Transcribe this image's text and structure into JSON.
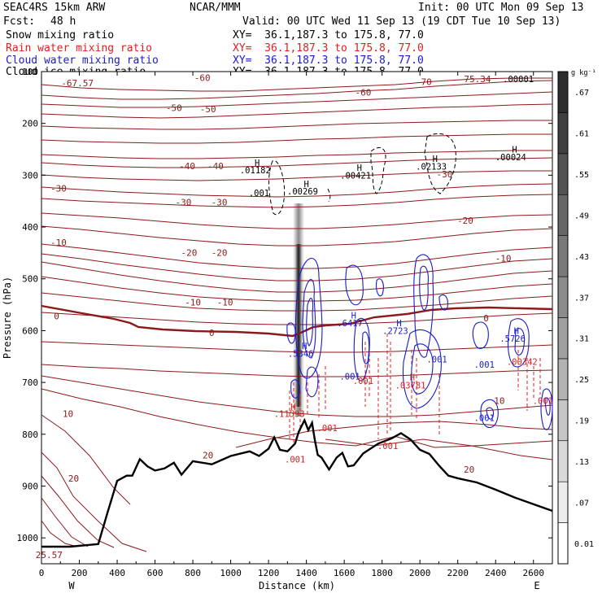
{
  "header": {
    "model": "SEAC4RS 15km ARW",
    "center": "NCAR/MMM",
    "init": "Init: 00 UTC Mon 09 Sep 13",
    "fcst_label": "Fcst:",
    "fcst_value": "48 h",
    "valid": "Valid: 00 UTC Wed 11 Sep 13 (19 CDT Tue 10 Sep 13)",
    "fields": [
      {
        "name": "Snow mixing ratio",
        "xy": "XY=  36.1,187.3 to 175.8, 77.0",
        "color": "#000000"
      },
      {
        "name": "Rain water mixing ratio",
        "xy": "XY=  36.1,187.3 to 175.8, 77.0",
        "color": "#dd2020"
      },
      {
        "name": "Cloud water mixing ratio",
        "xy": "XY=  36.1,187.3 to 175.8, 77.0",
        "color": "#1a1ad0"
      },
      {
        "name": "Cloud ice mixing ratio",
        "xy": "XY=  36.1,187.3 to 175.8, 77.0",
        "color": "#000000"
      }
    ]
  },
  "chart_data": {
    "type": "cross-section",
    "xlabel": "Distance (km)",
    "ylabel": "Pressure (hPa)",
    "xlim": [
      0,
      2700
    ],
    "ylim": [
      1050,
      100
    ],
    "x_ticks": [
      0,
      200,
      400,
      600,
      800,
      1000,
      1200,
      1400,
      1600,
      1800,
      2000,
      2200,
      2400,
      2600
    ],
    "y_ticks": [
      100,
      200,
      300,
      400,
      500,
      600,
      700,
      800,
      900,
      1000
    ],
    "x_end_labels": {
      "left": "W",
      "right": "E"
    },
    "colorbar": {
      "unit": "g kg⁻¹",
      "ticks": [
        "0.01",
        ".07",
        ".13",
        ".19",
        ".25",
        ".31",
        ".37",
        ".43",
        ".49",
        ".55",
        ".61",
        ".67"
      ]
    },
    "colors": {
      "temperature": "#8b1a1a",
      "freezing_level": "#8b1a1a",
      "rain": "#dd2020",
      "cloud_water": "#1a1ad0",
      "terrain": "#000000"
    },
    "temperature_labels": [
      {
        "text": "-67.57",
        "x": 190,
        "p": 122
      },
      {
        "text": "-75.34",
        "x": 2290,
        "p": 114
      },
      {
        "text": "-70",
        "x": 2020,
        "p": 120
      },
      {
        "text": "-60",
        "x": 850,
        "p": 112
      },
      {
        "text": "-60",
        "x": 1700,
        "p": 140
      },
      {
        "text": "-50",
        "x": 700,
        "p": 170
      },
      {
        "text": "-50",
        "x": 880,
        "p": 172
      },
      {
        "text": "-40",
        "x": 770,
        "p": 282
      },
      {
        "text": "-40",
        "x": 920,
        "p": 282
      },
      {
        "text": "-30",
        "x": 90,
        "p": 325
      },
      {
        "text": "-30",
        "x": 750,
        "p": 352
      },
      {
        "text": "-30",
        "x": 940,
        "p": 352
      },
      {
        "text": "-30",
        "x": 2130,
        "p": 298
      },
      {
        "text": "-20",
        "x": 780,
        "p": 449
      },
      {
        "text": "-20",
        "x": 940,
        "p": 449
      },
      {
        "text": "-20",
        "x": 2240,
        "p": 387
      },
      {
        "text": "-10",
        "x": 90,
        "p": 430
      },
      {
        "text": "-10",
        "x": 800,
        "p": 545
      },
      {
        "text": "-10",
        "x": 970,
        "p": 545
      },
      {
        "text": "-10",
        "x": 2440,
        "p": 460
      },
      {
        "text": "0",
        "x": 80,
        "p": 572
      },
      {
        "text": "0",
        "x": 900,
        "p": 604
      },
      {
        "text": "0",
        "x": 2350,
        "p": 576
      },
      {
        "text": "10",
        "x": 140,
        "p": 760
      },
      {
        "text": "10",
        "x": 2420,
        "p": 735
      },
      {
        "text": "20",
        "x": 170,
        "p": 885
      },
      {
        "text": "20",
        "x": 880,
        "p": 840
      },
      {
        "text": "20",
        "x": 2260,
        "p": 868
      },
      {
        "text": "25.57",
        "x": 40,
        "p": 1033
      }
    ],
    "extrema_labels": [
      {
        "text": "H",
        "x": 1140,
        "p": 276,
        "color": "#000000"
      },
      {
        "text": ".01182",
        "x": 1130,
        "p": 290,
        "color": "#000000"
      },
      {
        "text": ".001",
        "x": 1150,
        "p": 334,
        "color": "#000000"
      },
      {
        "text": "H",
        "x": 1400,
        "p": 317,
        "color": "#000000"
      },
      {
        "text": ".00269",
        "x": 1380,
        "p": 331,
        "color": "#000000"
      },
      {
        "text": "H",
        "x": 1680,
        "p": 285,
        "color": "#000000"
      },
      {
        "text": ".00421",
        "x": 1660,
        "p": 300,
        "color": "#000000"
      },
      {
        "text": "H",
        "x": 2080,
        "p": 268,
        "color": "#000000"
      },
      {
        "text": ".02133",
        "x": 2060,
        "p": 283,
        "color": "#000000"
      },
      {
        "text": "H",
        "x": 2500,
        "p": 250,
        "color": "#000000"
      },
      {
        "text": ".00024",
        "x": 2480,
        "p": 265,
        "color": "#000000"
      },
      {
        "text": ".00001",
        "x": 2520,
        "p": 114,
        "color": "#000000"
      },
      {
        "text": "H",
        "x": 1390,
        "p": 629,
        "color": "#1a1ad0"
      },
      {
        "text": ".5346",
        "x": 1370,
        "p": 644,
        "color": "#1a1ad0"
      },
      {
        "text": "H",
        "x": 1650,
        "p": 570,
        "color": "#1a1ad0"
      },
      {
        "text": ".6417",
        "x": 1630,
        "p": 585,
        "color": "#1a1ad0"
      },
      {
        "text": "H",
        "x": 1890,
        "p": 585,
        "color": "#1a1ad0"
      },
      {
        "text": ".2723",
        "x": 1870,
        "p": 600,
        "color": "#1a1ad0"
      },
      {
        "text": "H",
        "x": 2510,
        "p": 600,
        "color": "#1a1ad0"
      },
      {
        "text": ".5726",
        "x": 2490,
        "p": 615,
        "color": "#1a1ad0"
      },
      {
        "text": ".001",
        "x": 2090,
        "p": 655,
        "color": "#1a1ad0"
      },
      {
        "text": ".001",
        "x": 1630,
        "p": 688,
        "color": "#1a1ad0"
      },
      {
        "text": ".001",
        "x": 2340,
        "p": 665,
        "color": "#1a1ad0"
      },
      {
        "text": ".001",
        "x": 2340,
        "p": 768,
        "color": "#1a1ad0"
      },
      {
        "text": "H",
        "x": 1330,
        "p": 747,
        "color": "#dd2020"
      },
      {
        "text": ".11593",
        "x": 1310,
        "p": 760,
        "color": "#dd2020"
      },
      {
        "text": "H",
        "x": 1960,
        "p": 690,
        "color": "#dd2020"
      },
      {
        "text": ".03781",
        "x": 1950,
        "p": 705,
        "color": "#dd2020"
      },
      {
        "text": ".00342",
        "x": 2540,
        "p": 660,
        "color": "#dd2020"
      },
      {
        "text": ".001",
        "x": 1700,
        "p": 697,
        "color": "#dd2020"
      },
      {
        "text": ".001",
        "x": 1510,
        "p": 788,
        "color": "#dd2020"
      },
      {
        "text": ".001",
        "x": 1830,
        "p": 822,
        "color": "#dd2020"
      },
      {
        "text": ".001",
        "x": 2650,
        "p": 735,
        "color": "#dd2020"
      },
      {
        "text": ".001",
        "x": 1340,
        "p": 848,
        "color": "#dd2020"
      }
    ],
    "terrain_profile": [
      [
        0,
        1017
      ],
      [
        150,
        1017
      ],
      [
        300,
        1012
      ],
      [
        350,
        950
      ],
      [
        400,
        890
      ],
      [
        450,
        880
      ],
      [
        480,
        880
      ],
      [
        520,
        848
      ],
      [
        560,
        862
      ],
      [
        600,
        870
      ],
      [
        650,
        866
      ],
      [
        700,
        855
      ],
      [
        740,
        878
      ],
      [
        800,
        852
      ],
      [
        900,
        858
      ],
      [
        1000,
        842
      ],
      [
        1100,
        833
      ],
      [
        1150,
        842
      ],
      [
        1200,
        828
      ],
      [
        1230,
        806
      ],
      [
        1260,
        830
      ],
      [
        1300,
        833
      ],
      [
        1340,
        818
      ],
      [
        1360,
        795
      ],
      [
        1390,
        773
      ],
      [
        1410,
        792
      ],
      [
        1430,
        778
      ],
      [
        1445,
        812
      ],
      [
        1460,
        840
      ],
      [
        1480,
        845
      ],
      [
        1520,
        868
      ],
      [
        1560,
        845
      ],
      [
        1590,
        836
      ],
      [
        1620,
        862
      ],
      [
        1650,
        860
      ],
      [
        1700,
        837
      ],
      [
        1780,
        818
      ],
      [
        1850,
        808
      ],
      [
        1900,
        798
      ],
      [
        1950,
        810
      ],
      [
        2000,
        830
      ],
      [
        2050,
        838
      ],
      [
        2100,
        860
      ],
      [
        2150,
        880
      ],
      [
        2200,
        885
      ],
      [
        2300,
        893
      ],
      [
        2400,
        907
      ],
      [
        2500,
        922
      ],
      [
        2600,
        935
      ],
      [
        2700,
        948
      ]
    ]
  }
}
